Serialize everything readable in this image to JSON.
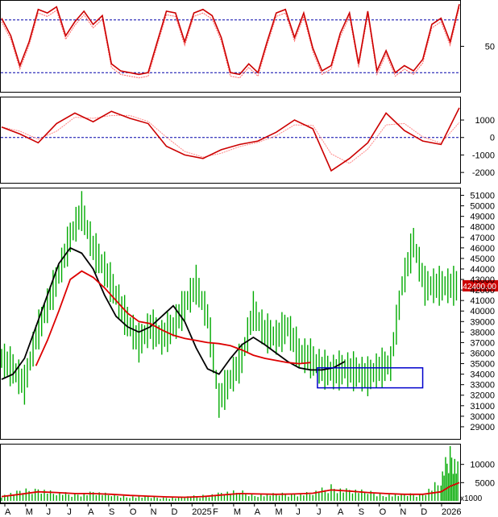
{
  "chart_data": [
    {
      "type": "line",
      "panel": "stochastic-oscillator",
      "ylim": [
        0,
        100
      ],
      "y_ticks": [
        {
          "value": 50,
          "label": "50"
        }
      ],
      "reference_lines": [
        80,
        20
      ],
      "colors": {
        "main": "#cc0000",
        "signal": "#ff6666",
        "reference": "#0000aa"
      },
      "x": [
        0,
        4,
        8,
        12,
        16,
        20,
        24,
        28,
        32,
        36,
        40,
        44,
        48,
        52,
        56,
        60,
        64,
        68,
        72,
        76,
        80,
        84,
        88,
        92,
        96,
        100,
        104,
        108,
        112,
        116,
        120,
        124,
        128,
        132,
        136,
        140,
        144,
        148,
        152,
        156,
        160,
        164,
        168,
        172,
        176,
        180,
        184,
        188,
        192,
        196,
        200
      ],
      "values": [
        82,
        62,
        28,
        55,
        92,
        88,
        95,
        62,
        78,
        90,
        75,
        85,
        30,
        22,
        20,
        18,
        20,
        55,
        90,
        88,
        55,
        88,
        92,
        85,
        60,
        20,
        18,
        30,
        20,
        55,
        88,
        92,
        60,
        88,
        48,
        22,
        28,
        65,
        88,
        30,
        90,
        22,
        45,
        20,
        28,
        22,
        35,
        75,
        82,
        55,
        98
      ]
    },
    {
      "type": "line",
      "panel": "macd",
      "ylim": [
        -2500,
        2200
      ],
      "y_ticks": [
        {
          "value": 1000,
          "label": "1000"
        },
        {
          "value": 0,
          "label": "0"
        },
        {
          "value": -1000,
          "label": "-1000"
        },
        {
          "value": -2000,
          "label": "-2000"
        }
      ],
      "zero_line": 0,
      "colors": {
        "macd": "#cc0000",
        "signal": "#ff8888",
        "reference": "#0000aa"
      },
      "x": [
        0,
        8,
        16,
        24,
        32,
        40,
        48,
        56,
        64,
        72,
        80,
        88,
        96,
        104,
        112,
        120,
        128,
        136,
        144,
        152,
        160,
        168,
        176,
        184,
        192,
        200
      ],
      "values": [
        600,
        200,
        -300,
        800,
        1400,
        900,
        1500,
        1100,
        800,
        -500,
        -1000,
        -1200,
        -700,
        -400,
        -200,
        300,
        1000,
        500,
        -1900,
        -1200,
        -300,
        1400,
        400,
        -200,
        -400,
        1700
      ]
    },
    {
      "type": "line",
      "panel": "price",
      "ylim": [
        28000,
        51500
      ],
      "y_ticks": [
        {
          "value": 29000,
          "label": "29000"
        },
        {
          "value": 30000,
          "label": "30000"
        },
        {
          "value": 31000,
          "label": "31000"
        },
        {
          "value": 32000,
          "label": "32000"
        },
        {
          "value": 33000,
          "label": "33000"
        },
        {
          "value": 34000,
          "label": "34000"
        },
        {
          "value": 35000,
          "label": "35000"
        },
        {
          "value": 36000,
          "label": "36000"
        },
        {
          "value": 37000,
          "label": "37000"
        },
        {
          "value": 38000,
          "label": "38000"
        },
        {
          "value": 39000,
          "label": "39000"
        },
        {
          "value": 40000,
          "label": "40000"
        },
        {
          "value": 41000,
          "label": "41000"
        },
        {
          "value": 42000,
          "label": "42000"
        },
        {
          "value": 43000,
          "label": "43000"
        },
        {
          "value": 44000,
          "label": "44000"
        },
        {
          "value": 45000,
          "label": "45000"
        },
        {
          "value": 46000,
          "label": "46000"
        },
        {
          "value": 47000,
          "label": "47000"
        },
        {
          "value": 48000,
          "label": "48000"
        },
        {
          "value": 49000,
          "label": "49000"
        },
        {
          "value": 50000,
          "label": "50000"
        },
        {
          "value": 51000,
          "label": "51000"
        }
      ],
      "price_badge": {
        "value": 42400,
        "label": "42400.00"
      },
      "colors": {
        "price": "#00aa00",
        "ma_short": "#000000",
        "ma_long": "#dd0000",
        "box": "#0000cc",
        "badge": "#cc0000"
      },
      "x": [
        0,
        5,
        10,
        15,
        20,
        25,
        30,
        35,
        40,
        45,
        50,
        55,
        60,
        65,
        70,
        75,
        80,
        85,
        90,
        95,
        100,
        105,
        110,
        115,
        120,
        125,
        130,
        135,
        140,
        145,
        150,
        155,
        160,
        165,
        170,
        175,
        180,
        185,
        190,
        195,
        200
      ],
      "values": [
        35500,
        34500,
        33000,
        37500,
        40500,
        43500,
        47000,
        49500,
        46000,
        44000,
        41500,
        39000,
        37000,
        38500,
        37500,
        38500,
        40500,
        42500,
        39500,
        31500,
        33500,
        35500,
        40000,
        38000,
        37500,
        38500,
        36000,
        35500,
        34500,
        34200,
        34500,
        34200,
        33800,
        34500,
        35000,
        42400,
        46500,
        42400,
        42400,
        42400,
        42400
      ],
      "series": [
        {
          "name": "MA20",
          "values": [
            33500,
            34000,
            35500,
            38500,
            41500,
            44500,
            46000,
            45500,
            44000,
            41500,
            39500,
            38500,
            38000,
            38500,
            39500,
            40500,
            39000,
            36500,
            34500,
            34000,
            35500,
            36800,
            37500,
            36800,
            36000,
            35200,
            34600,
            34400,
            34400,
            34600,
            35200,
            null,
            null,
            null,
            null,
            null,
            null,
            null,
            null,
            null,
            null
          ]
        },
        {
          "name": "MA50",
          "values": [
            null,
            null,
            null,
            34800,
            37200,
            40000,
            43000,
            43800,
            43200,
            42200,
            41000,
            39800,
            39000,
            38800,
            38200,
            37700,
            37400,
            37200,
            37000,
            36900,
            36700,
            36300,
            35800,
            35500,
            35300,
            35100,
            35000,
            35100,
            null,
            null,
            null,
            null,
            null,
            null,
            null,
            null,
            null,
            null,
            null,
            null,
            null
          ]
        }
      ],
      "box": {
        "x0": 138,
        "x1": 184,
        "y0": 32700,
        "y1": 34600
      }
    },
    {
      "type": "bar",
      "panel": "volume",
      "unit_label": "x1000",
      "ylim": [
        0,
        15000
      ],
      "y_ticks": [
        {
          "value": 5000,
          "label": "5000"
        },
        {
          "value": 10000,
          "label": "10000"
        }
      ],
      "colors": {
        "bars": "#00aa00",
        "avg": "#dd0000"
      },
      "x": [
        0,
        8,
        16,
        24,
        32,
        40,
        48,
        56,
        64,
        72,
        80,
        88,
        96,
        104,
        112,
        120,
        128,
        136,
        144,
        152,
        160,
        168,
        176,
        184,
        192,
        196,
        200
      ],
      "values": [
        1500,
        2500,
        3500,
        2200,
        1800,
        2400,
        1600,
        1300,
        1000,
        900,
        1100,
        1400,
        2200,
        2500,
        1800,
        1800,
        2000,
        2300,
        3800,
        3000,
        2400,
        1800,
        1600,
        2000,
        6000,
        14000,
        9000
      ],
      "series": [
        {
          "name": "Volume MA",
          "values": [
            1200,
            1800,
            2500,
            2300,
            2000,
            2000,
            1800,
            1500,
            1300,
            1100,
            1000,
            1200,
            1600,
            2000,
            1900,
            1800,
            1900,
            2100,
            3000,
            2700,
            2300,
            2000,
            1800,
            1800,
            2500,
            4000,
            5000
          ]
        }
      ]
    }
  ],
  "time_axis": {
    "labels": [
      "A",
      "M",
      "J",
      "J",
      "A",
      "S",
      "O",
      "N",
      "D",
      "2025",
      "F",
      "M",
      "A",
      "M",
      "J",
      "J",
      "A",
      "S",
      "O",
      "N",
      "D",
      "2026"
    ]
  }
}
